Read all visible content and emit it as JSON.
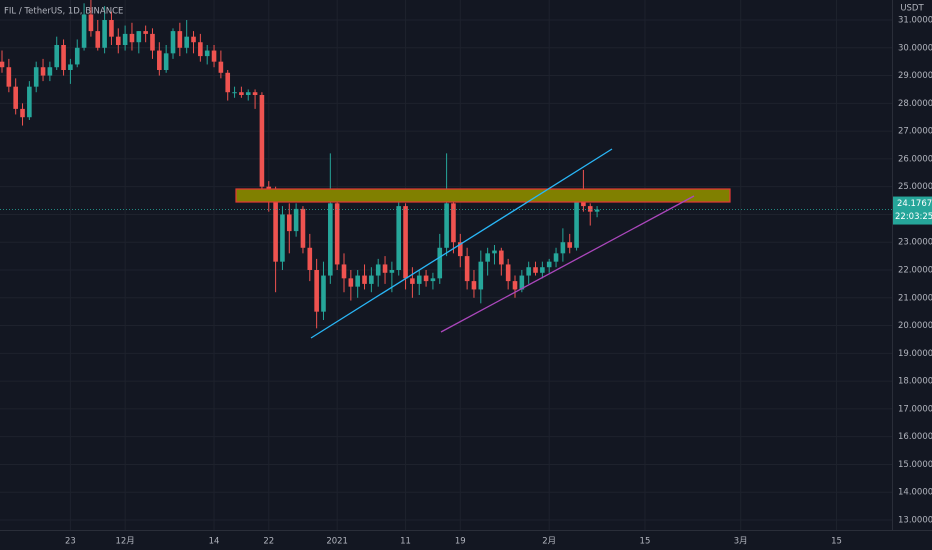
{
  "chart_data": {
    "type": "candlestick",
    "title": "FIL / TetherUS, 1D, BINANCE",
    "currency": "USDT",
    "countdown": "22:03:25",
    "up_color": "#26a69a",
    "down_color": "#ef5350",
    "grid": true,
    "categories": [
      null,
      null,
      null,
      null,
      null,
      null,
      null,
      null,
      null,
      null,
      "23",
      null,
      null,
      null,
      null,
      null,
      null,
      null,
      "12月",
      null,
      null,
      null,
      null,
      null,
      null,
      null,
      null,
      null,
      null,
      null,
      null,
      "14",
      null,
      null,
      null,
      null,
      null,
      null,
      null,
      "22",
      null,
      null,
      null,
      null,
      null,
      null,
      null,
      null,
      null,
      "2021",
      null,
      null,
      null,
      null,
      null,
      null,
      null,
      null,
      null,
      "11",
      null,
      null,
      null,
      null,
      null,
      null,
      null,
      "19",
      null,
      null,
      null,
      null,
      null,
      null,
      null,
      null,
      null,
      null,
      null,
      null,
      "2月",
      null,
      null,
      null,
      null,
      null,
      null,
      null,
      null,
      null,
      null,
      null,
      null,
      null,
      "15",
      null,
      null,
      null,
      null,
      null,
      null,
      null,
      null,
      null,
      null,
      null,
      null,
      null,
      "3月",
      null,
      null,
      null,
      null,
      null,
      null,
      null,
      null,
      null,
      null,
      null,
      null,
      null,
      "15",
      null,
      null,
      null,
      null,
      null,
      null,
      null,
      null,
      null,
      null,
      null,
      null,
      null
    ],
    "open": [
      29.5,
      29.3,
      28.6,
      27.8,
      27.5,
      28.6,
      29.3,
      29.0,
      29.3,
      30.1,
      29.2,
      29.4,
      30.0,
      31.2,
      30.6,
      30.0,
      31.0,
      30.4,
      30.1,
      30.5,
      30.2,
      30.6,
      30.5,
      29.9,
      29.2,
      29.8,
      30.6,
      30.0,
      30.4,
      30.2,
      29.7,
      29.9,
      29.5,
      29.1,
      28.4,
      28.4,
      28.3,
      28.4,
      28.3,
      25.0,
      24.6,
      22.3,
      24.0,
      23.4,
      24.2,
      22.8,
      22.0,
      20.5,
      21.8,
      24.4,
      22.2,
      21.7,
      21.4,
      21.8,
      21.5,
      21.8,
      22.2,
      21.9,
      22.0,
      24.3,
      21.7,
      21.5,
      21.8,
      21.6,
      21.7,
      22.8,
      24.4,
      23.0,
      22.5,
      21.6,
      21.3,
      22.3,
      22.6,
      22.7,
      22.2,
      21.6,
      21.3,
      21.8,
      22.1,
      21.9,
      22.1,
      22.3,
      22.6,
      23.0,
      22.8,
      24.6,
      24.3,
      24.1,
      null,
      null,
      null,
      null,
      null,
      null,
      null,
      null,
      null,
      null,
      null,
      null,
      null,
      null,
      null,
      null,
      null,
      null,
      null,
      null,
      null,
      null,
      null,
      null,
      null,
      null,
      null,
      null,
      null,
      null,
      null,
      null,
      null,
      null,
      null,
      null,
      null,
      null,
      null,
      null,
      null,
      null,
      null,
      null,
      null,
      null,
      null,
      null
    ],
    "high": [
      29.9,
      29.6,
      28.9,
      28.0,
      28.8,
      29.5,
      29.6,
      29.5,
      30.4,
      30.3,
      29.6,
      30.3,
      31.6,
      31.8,
      31.0,
      31.5,
      31.3,
      30.7,
      30.8,
      30.9,
      30.6,
      30.8,
      30.7,
      30.2,
      30.1,
      30.7,
      30.9,
      31.0,
      30.6,
      30.5,
      30.1,
      30.1,
      29.9,
      29.2,
      28.6,
      28.6,
      28.5,
      28.5,
      28.4,
      25.2,
      25.0,
      24.3,
      24.4,
      24.4,
      24.3,
      23.3,
      22.4,
      22.3,
      26.2,
      24.5,
      22.6,
      22.0,
      22.0,
      22.2,
      22.1,
      22.4,
      22.5,
      22.3,
      24.5,
      24.4,
      22.1,
      22.0,
      22.0,
      21.9,
      23.3,
      26.2,
      24.5,
      23.3,
      22.8,
      22.0,
      22.7,
      22.8,
      22.9,
      22.8,
      22.4,
      21.8,
      22.0,
      22.3,
      22.3,
      22.3,
      22.4,
      22.8,
      23.5,
      23.3,
      24.9,
      25.6,
      24.4,
      24.3,
      null,
      null,
      null,
      null,
      null,
      null,
      null,
      null,
      null,
      null,
      null,
      null,
      null,
      null,
      null,
      null,
      null,
      null,
      null,
      null,
      null,
      null,
      null,
      null,
      null,
      null,
      null,
      null,
      null,
      null,
      null,
      null,
      null,
      null,
      null,
      null,
      null,
      null,
      null,
      null,
      null,
      null,
      null,
      null,
      null,
      null,
      null,
      null
    ],
    "low": [
      29.1,
      28.4,
      27.6,
      27.2,
      27.4,
      28.4,
      28.8,
      28.8,
      29.2,
      29.0,
      28.7,
      29.3,
      29.9,
      30.4,
      29.9,
      29.8,
      30.1,
      29.8,
      29.9,
      29.9,
      29.8,
      30.2,
      29.6,
      29.0,
      29.1,
      29.6,
      29.7,
      29.8,
      29.8,
      29.5,
      29.4,
      29.3,
      28.9,
      28.1,
      28.2,
      28.2,
      28.1,
      27.8,
      24.8,
      24.1,
      21.2,
      22.0,
      22.6,
      23.2,
      22.6,
      21.6,
      19.9,
      20.2,
      21.5,
      22.0,
      21.2,
      20.9,
      21.0,
      21.3,
      21.2,
      21.4,
      21.5,
      21.2,
      21.8,
      21.3,
      21.0,
      21.1,
      21.4,
      21.3,
      21.5,
      22.5,
      22.6,
      22.1,
      21.3,
      21.0,
      20.8,
      21.8,
      22.2,
      21.8,
      21.3,
      21.0,
      21.2,
      21.5,
      21.8,
      21.7,
      21.9,
      22.1,
      22.3,
      22.6,
      22.7,
      24.1,
      23.6,
      23.9,
      null,
      null,
      null,
      null,
      null,
      null,
      null,
      null,
      null,
      null,
      null,
      null,
      null,
      null,
      null,
      null,
      null,
      null,
      null,
      null,
      null,
      null,
      null,
      null,
      null,
      null,
      null,
      null,
      null,
      null,
      null,
      null,
      null,
      null,
      null,
      null,
      null,
      null,
      null,
      null,
      null,
      null,
      null,
      null,
      null,
      null,
      null,
      null
    ],
    "close": [
      29.3,
      28.6,
      27.8,
      27.5,
      28.6,
      29.3,
      29.0,
      29.3,
      30.1,
      29.2,
      29.4,
      30.0,
      31.2,
      30.6,
      30.0,
      31.0,
      30.4,
      30.1,
      30.5,
      30.2,
      30.6,
      30.5,
      29.9,
      29.2,
      29.8,
      30.6,
      30.0,
      30.4,
      30.2,
      29.7,
      29.9,
      29.5,
      29.1,
      28.4,
      28.4,
      28.3,
      28.4,
      28.3,
      25.0,
      24.6,
      22.3,
      24.0,
      23.4,
      24.2,
      22.8,
      22.0,
      20.5,
      21.8,
      24.4,
      22.2,
      21.7,
      21.4,
      21.8,
      21.5,
      21.8,
      22.2,
      21.9,
      22.0,
      24.3,
      21.7,
      21.5,
      21.8,
      21.6,
      21.7,
      22.8,
      24.4,
      23.0,
      22.5,
      21.6,
      21.3,
      22.3,
      22.6,
      22.7,
      22.2,
      21.6,
      21.3,
      21.8,
      22.1,
      21.9,
      22.1,
      22.3,
      22.6,
      23.0,
      22.8,
      24.6,
      24.3,
      24.1,
      24.1767,
      null,
      null,
      null,
      null,
      null,
      null,
      null,
      null,
      null,
      null,
      null,
      null,
      null,
      null,
      null,
      null,
      null,
      null,
      null,
      null,
      null,
      null,
      null,
      null,
      null,
      null,
      null,
      null,
      null,
      null,
      null,
      null,
      null,
      null,
      null,
      null,
      null,
      null,
      null,
      null,
      null,
      null,
      null,
      null,
      null,
      null,
      null,
      null
    ],
    "ylim": [
      12.64,
      31.72
    ],
    "yticks": [
      {
        "value": 13,
        "label": "13.0000"
      },
      {
        "value": 14,
        "label": "14.0000"
      },
      {
        "value": 15,
        "label": "15.0000"
      },
      {
        "value": 16,
        "label": "16.0000"
      },
      {
        "value": 17,
        "label": "17.0000"
      },
      {
        "value": 18,
        "label": "18.0000"
      },
      {
        "value": 19,
        "label": "19.0000"
      },
      {
        "value": 20,
        "label": "20.0000"
      },
      {
        "value": 21,
        "label": "21.0000"
      },
      {
        "value": 22,
        "label": "22.0000"
      },
      {
        "value": 23,
        "label": "23.0000"
      },
      {
        "value": 24,
        "label": "24.0000"
      },
      {
        "value": 25,
        "label": "25.0000"
      },
      {
        "value": 26,
        "label": "26.0000"
      },
      {
        "value": 27,
        "label": "27.0000"
      },
      {
        "value": 28,
        "label": "28.0000"
      },
      {
        "value": 29,
        "label": "29.0000"
      },
      {
        "value": 30,
        "label": "30.0000"
      },
      {
        "value": 31,
        "label": "31.0000"
      }
    ]
  }
}
